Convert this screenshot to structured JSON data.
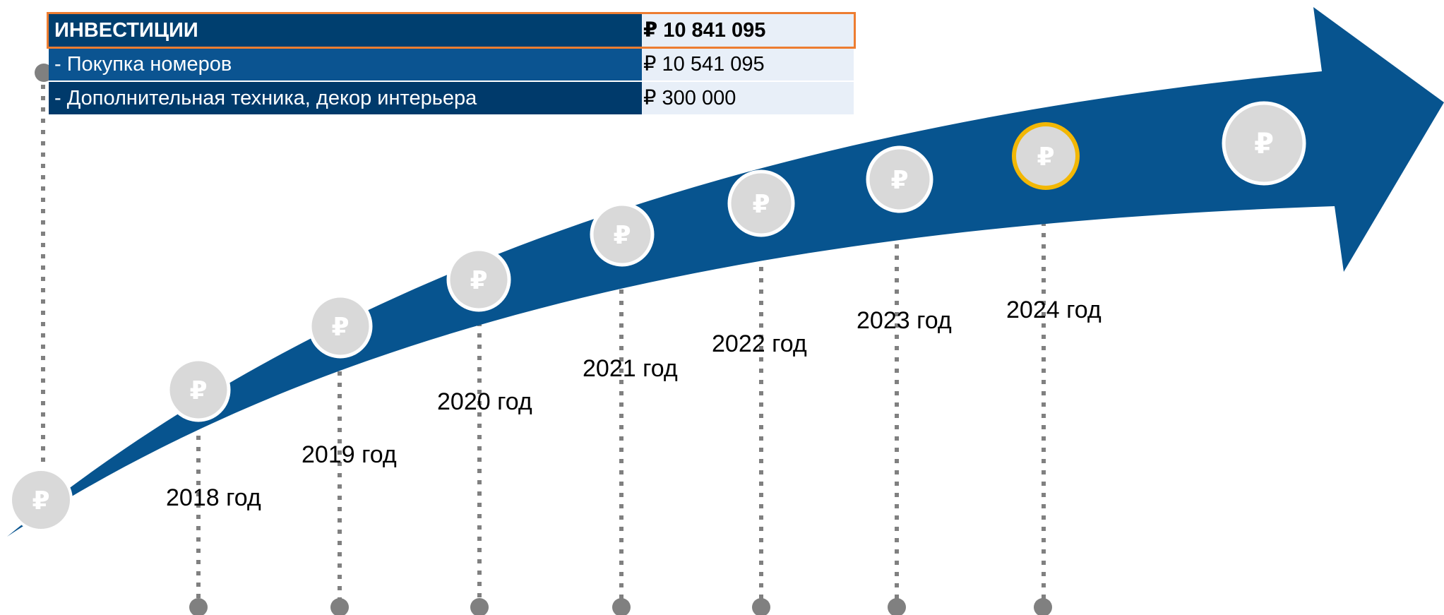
{
  "investments": {
    "header": {
      "label": "ИНВЕСТИЦИИ",
      "value": "₽ 10 841 095"
    },
    "rows": [
      {
        "label": " - Покупка номеров",
        "value": "₽ 10 541 095"
      },
      {
        "label": " - Дополнительная техника, декор интерьера",
        "value": "₽ 300 000"
      }
    ]
  },
  "timeline": {
    "coin_symbol": "₽",
    "years": [
      "2018 год",
      "2019 год",
      "2020 год",
      "2021 год",
      "2022 год",
      "2023 год",
      "2024 год"
    ],
    "highlighted_year": "2024 год"
  },
  "colors": {
    "arrow": "#07548f",
    "table_header": "#003f6f",
    "table_row_light": "#0b5491",
    "table_row_dark": "#003a6b",
    "value_cell": "#e8eff8",
    "header_frame": "#ed7d31",
    "coin_fill": "#d9d9d9",
    "coin_stroke": "#ffffff",
    "highlight_ring": "#f2b705",
    "dotted_line": "#808080"
  }
}
